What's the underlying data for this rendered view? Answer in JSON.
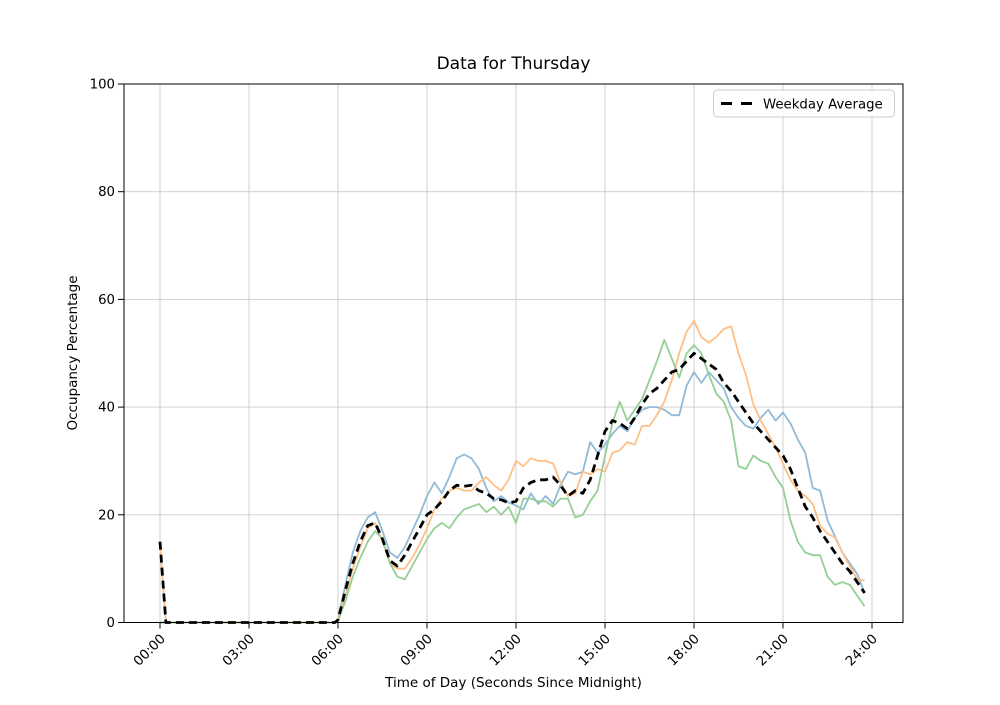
{
  "figure": {
    "title": "Data for Thursday",
    "xlabel": "Time of Day (Seconds Since Midnight)",
    "ylabel": "Occupancy Percentage",
    "legend_label": "Weekday Average",
    "background": "#ffffff",
    "grid_color": "#cccccc",
    "spine_color": "#000000"
  },
  "chart_data": {
    "type": "line",
    "title": "Data for Thursday",
    "xlabel": "Time of Day (Seconds Since Midnight)",
    "ylabel": "Occupancy Percentage",
    "grid": true,
    "legend_position": "upper right",
    "legend_entries": [
      "Weekday Average"
    ],
    "ylim": [
      0,
      100
    ],
    "y_ticks": [
      0,
      20,
      40,
      60,
      80,
      100
    ],
    "x_tick_hours": [
      0,
      3,
      6,
      9,
      12,
      15,
      18,
      21,
      24
    ],
    "x_tick_labels": [
      "00:00",
      "03:00",
      "06:00",
      "09:00",
      "12:00",
      "15:00",
      "18:00",
      "21:00",
      "24:00"
    ],
    "x_hours": [
      0,
      0.2,
      1,
      2,
      3,
      4,
      5,
      5.9,
      6,
      6.25,
      6.5,
      6.75,
      7,
      7.25,
      7.5,
      7.75,
      8,
      8.25,
      8.5,
      8.75,
      9,
      9.25,
      9.5,
      9.75,
      10,
      10.25,
      10.5,
      10.75,
      11,
      11.25,
      11.5,
      11.75,
      12,
      12.25,
      12.5,
      12.75,
      13,
      13.25,
      13.5,
      13.75,
      14,
      14.25,
      14.5,
      14.75,
      15,
      15.25,
      15.5,
      15.75,
      16,
      16.25,
      16.5,
      16.75,
      17,
      17.25,
      17.5,
      17.75,
      18,
      18.25,
      18.5,
      18.75,
      19,
      19.25,
      19.5,
      19.75,
      20,
      20.25,
      20.5,
      20.75,
      21,
      21.25,
      21.5,
      21.75,
      22,
      22.25,
      22.5,
      22.75,
      23,
      23.25,
      23.5,
      23.75
    ],
    "series": [
      {
        "name": "day-series-1",
        "color": "#8fbbd9",
        "width": 1.8,
        "dash": null,
        "in_legend": false,
        "values": [
          0,
          0,
          0,
          0,
          0,
          0,
          0,
          0,
          0.5,
          7,
          13,
          17,
          19.5,
          20.5,
          17,
          13,
          12,
          14,
          17,
          20,
          23.5,
          26,
          24,
          27,
          30.5,
          31.2,
          30.5,
          28.5,
          25,
          22.5,
          23.5,
          22.3,
          21.7,
          21,
          24,
          22,
          23.5,
          22,
          25.5,
          28,
          27.5,
          28,
          33.5,
          31.5,
          33,
          35,
          36.5,
          35.5,
          38,
          39.5,
          40,
          40,
          39.5,
          38.5,
          38.5,
          44,
          46.5,
          44.5,
          46.5,
          45,
          43.5,
          40,
          38,
          36.5,
          36,
          38,
          39.5,
          37.5,
          39,
          37,
          34,
          31.5,
          25,
          24.5,
          19,
          16,
          13,
          11,
          9,
          5.5
        ]
      },
      {
        "name": "day-series-2",
        "color": "#ffbf86",
        "width": 1.8,
        "dash": null,
        "in_legend": false,
        "values": [
          14.5,
          0,
          0,
          0,
          0,
          0,
          0,
          0,
          0.5,
          5,
          10,
          14,
          17.5,
          18.5,
          15,
          11,
          10,
          10,
          12,
          14.5,
          17.5,
          21,
          23,
          24.5,
          25,
          24.5,
          24.5,
          26,
          27,
          25.5,
          24.5,
          26.5,
          30,
          29,
          30.5,
          30,
          30,
          29.5,
          26,
          23.5,
          24,
          28,
          27.5,
          28.5,
          28,
          31.5,
          32,
          33.5,
          33,
          36.5,
          36.5,
          38.5,
          41,
          45,
          50,
          54,
          56,
          53,
          52,
          53,
          54.5,
          55,
          50,
          46,
          40.5,
          37.5,
          35,
          32.5,
          29.5,
          26.5,
          24.5,
          23.5,
          22,
          18,
          16.5,
          15.8,
          13,
          10.5,
          8,
          7.8
        ]
      },
      {
        "name": "day-series-3",
        "color": "#95cf95",
        "width": 1.8,
        "dash": null,
        "in_legend": false,
        "values": [
          0,
          0,
          0,
          0,
          0,
          0,
          0,
          0,
          0.3,
          4,
          8.5,
          12,
          15,
          17,
          15.5,
          11,
          8.5,
          8,
          10.5,
          13,
          15.5,
          17.5,
          18.5,
          17.5,
          19.5,
          21,
          21.5,
          22,
          20.5,
          21.5,
          20,
          21.5,
          18.5,
          23,
          23,
          22.5,
          22.5,
          21.5,
          23,
          23,
          19.5,
          20,
          22.5,
          24.5,
          31,
          37,
          41,
          37.5,
          39.5,
          41.5,
          45,
          48.5,
          52.5,
          49,
          45.5,
          50,
          51.5,
          50,
          46,
          42.5,
          41,
          37.5,
          29,
          28.5,
          31,
          30,
          29.5,
          27,
          25,
          19,
          15,
          13,
          12.5,
          12.5,
          8.5,
          7,
          7.5,
          7,
          5,
          3
        ]
      },
      {
        "name": "Weekday Average",
        "color": "#000000",
        "width": 2.8,
        "dash": [
          8,
          5
        ],
        "in_legend": true,
        "values": [
          15,
          0,
          0,
          0,
          0,
          0,
          0,
          0,
          0.5,
          6,
          11,
          15,
          18,
          18.5,
          15.5,
          11.5,
          10.5,
          12.5,
          15,
          17.5,
          20,
          21,
          22.5,
          24.5,
          25.5,
          25.3,
          25.5,
          24.5,
          24,
          23,
          22.8,
          22.2,
          22.5,
          25,
          26,
          26.5,
          26.5,
          27,
          25.5,
          23.5,
          24.5,
          24,
          26.5,
          31,
          35.5,
          37.5,
          37,
          36,
          38,
          40.5,
          42.5,
          43.5,
          45,
          46.5,
          47,
          48.5,
          50,
          49,
          48,
          47,
          44.5,
          43,
          41,
          39,
          37,
          35.5,
          34,
          32.5,
          31,
          28.5,
          25,
          21.5,
          19.5,
          17,
          15,
          13,
          11,
          9.5,
          7.5,
          5.5
        ]
      }
    ]
  }
}
